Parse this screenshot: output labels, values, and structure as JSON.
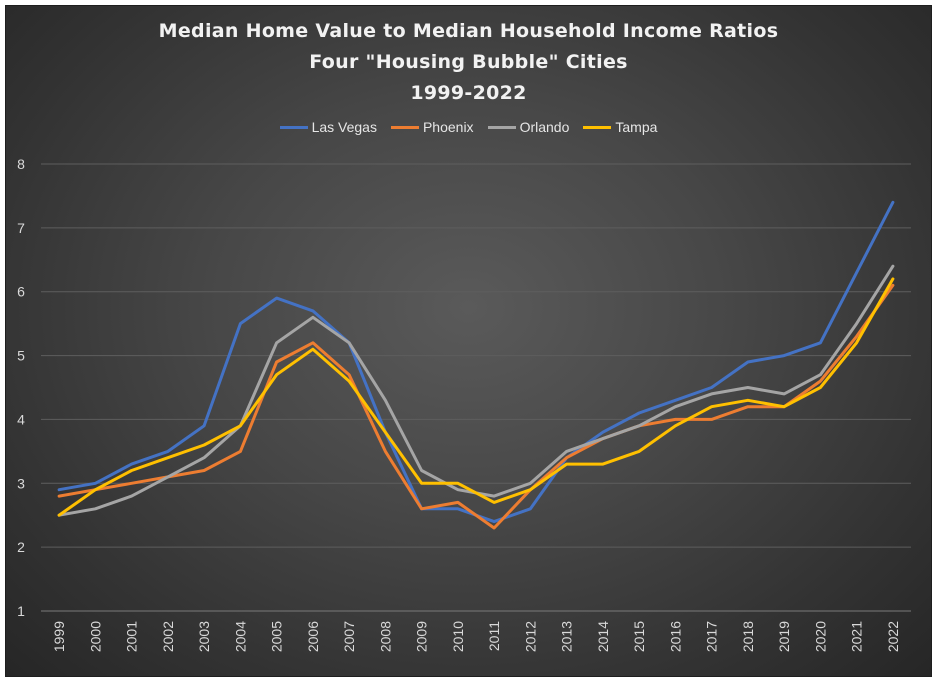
{
  "chart_data": {
    "type": "line",
    "title_lines": [
      "Median Home Value to Median Household Income Ratios",
      "Four \"Housing Bubble\" Cities",
      "1999-2022"
    ],
    "xlabel": "",
    "ylabel": "",
    "x": [
      "1999",
      "2000",
      "2001",
      "2002",
      "2003",
      "2004",
      "2005",
      "2006",
      "2007",
      "2008",
      "2009",
      "2010",
      "2011",
      "2012",
      "2013",
      "2014",
      "2015",
      "2016",
      "2017",
      "2018",
      "2019",
      "2020",
      "2021",
      "2022"
    ],
    "ylim": [
      1,
      8
    ],
    "yticks": [
      "1",
      "2",
      "3",
      "4",
      "5",
      "6",
      "7",
      "8"
    ],
    "grid": true,
    "legend_position": "top",
    "series": [
      {
        "name": "Las Vegas",
        "color": "#4472C4",
        "values": [
          2.9,
          3.0,
          3.3,
          3.5,
          3.9,
          5.5,
          5.9,
          5.7,
          5.2,
          3.8,
          2.6,
          2.6,
          2.4,
          2.6,
          3.4,
          3.8,
          4.1,
          4.3,
          4.5,
          4.9,
          5.0,
          5.2,
          6.3,
          7.4
        ]
      },
      {
        "name": "Phoenix",
        "color": "#ED7D31",
        "values": [
          2.8,
          2.9,
          3.0,
          3.1,
          3.2,
          3.5,
          4.9,
          5.2,
          4.7,
          3.5,
          2.6,
          2.7,
          2.3,
          2.9,
          3.4,
          3.7,
          3.9,
          4.0,
          4.0,
          4.2,
          4.2,
          4.6,
          5.3,
          6.1
        ]
      },
      {
        "name": "Orlando",
        "color": "#A5A5A5",
        "values": [
          2.5,
          2.6,
          2.8,
          3.1,
          3.4,
          3.9,
          5.2,
          5.6,
          5.2,
          4.3,
          3.2,
          2.9,
          2.8,
          3.0,
          3.5,
          3.7,
          3.9,
          4.2,
          4.4,
          4.5,
          4.4,
          4.7,
          5.5,
          6.4
        ]
      },
      {
        "name": "Tampa",
        "color": "#FFC000",
        "values": [
          2.5,
          2.9,
          3.2,
          3.4,
          3.6,
          3.9,
          4.7,
          5.1,
          4.6,
          3.8,
          3.0,
          3.0,
          2.7,
          2.9,
          3.3,
          3.3,
          3.5,
          3.9,
          4.2,
          4.3,
          4.2,
          4.5,
          5.2,
          6.2
        ]
      }
    ]
  }
}
